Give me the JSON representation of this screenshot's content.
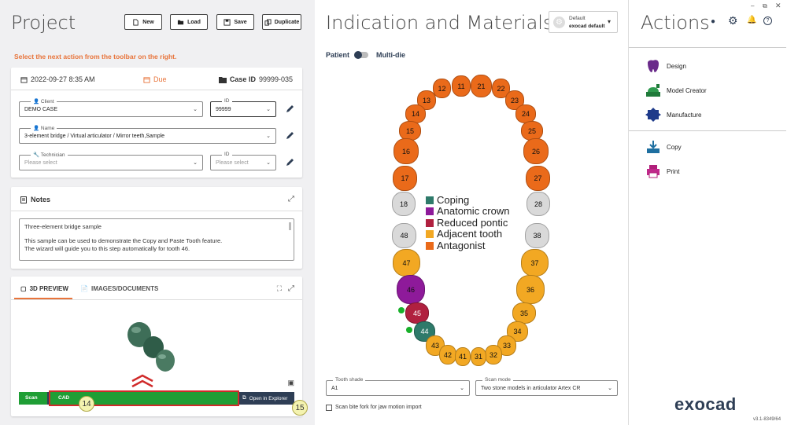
{
  "project": {
    "title": "Project",
    "buttons": {
      "new": "New",
      "load": "Load",
      "save": "Save",
      "duplicate": "Duplicate"
    },
    "hint": "Select the next action from the toolbar on the right.",
    "date": "2022-09-27 8:35 AM",
    "due_label": "Due",
    "case_id_label": "Case ID",
    "case_id": "99999-035",
    "client": {
      "label": "Client",
      "value": "DEMO CASE",
      "id_label": "ID",
      "id_value": "99999"
    },
    "name": {
      "label": "Name",
      "value": "3-element bridge / Virtual articulator / Mirror teeth,Sample"
    },
    "technician": {
      "label": "Technician",
      "placeholder": "Please select",
      "id_label": "ID",
      "id_placeholder": "Please select"
    },
    "colors": {
      "accent": "#e8743b",
      "dark": "#2e3e55"
    }
  },
  "notes": {
    "title": "Notes",
    "line1": "Three-element bridge sample",
    "line2": "This sample can be used to demonstrate the Copy and Paste Tooth feature.",
    "line3": "The wizard will guide you to this step automatically for tooth 46."
  },
  "preview": {
    "tab_3d": "3D PREVIEW",
    "tab_images": "IMAGES/DOCUMENTS",
    "steps": {
      "scan": "Scan",
      "cad": "CAD"
    },
    "open_explorer": "Open in Explorer",
    "badge14": "14",
    "badge15": "15"
  },
  "indication": {
    "title": "Indication and Materials",
    "profile_line1": "Default",
    "profile_line2": "exocad default",
    "toggle_left": "Patient",
    "toggle_right": "Multi-die",
    "legend": {
      "coping": "Coping",
      "anatomic_crown": "Anatomic crown",
      "reduced_pontic": "Reduced pontic",
      "adjacent_tooth": "Adjacent tooth",
      "antagonist": "Antagonist"
    },
    "legend_colors": {
      "coping": "#2e7a6a",
      "anatomic_crown": "#8e1a9a",
      "reduced_pontic": "#b0203f",
      "adjacent_tooth": "#f2a823",
      "antagonist": "#ea6a1a"
    },
    "teeth": {
      "t11": "11",
      "t12": "12",
      "t13": "13",
      "t14": "14",
      "t15": "15",
      "t16": "16",
      "t17": "17",
      "t18": "18",
      "t21": "21",
      "t22": "22",
      "t23": "23",
      "t24": "24",
      "t25": "25",
      "t26": "26",
      "t27": "27",
      "t28": "28",
      "t31": "31",
      "t32": "32",
      "t33": "33",
      "t34": "34",
      "t35": "35",
      "t36": "36",
      "t37": "37",
      "t38": "38",
      "t41": "41",
      "t42": "42",
      "t43": "43",
      "t44": "44",
      "t45": "45",
      "t46": "46",
      "t47": "47",
      "t48": "48"
    },
    "tooth_shade": {
      "label": "Tooth shade",
      "value": "A1"
    },
    "scan_mode": {
      "label": "Scan mode",
      "value": "Two stone models in articulator Artex CR"
    },
    "scan_bite_fork": "Scan bite fork for jaw motion import"
  },
  "actions": {
    "title": "Actions",
    "design": "Design",
    "model_creator": "Model Creator",
    "manufacture": "Manufacture",
    "copy": "Copy",
    "print": "Print",
    "brand": "exocad",
    "version": "v3.1-8349/64"
  }
}
